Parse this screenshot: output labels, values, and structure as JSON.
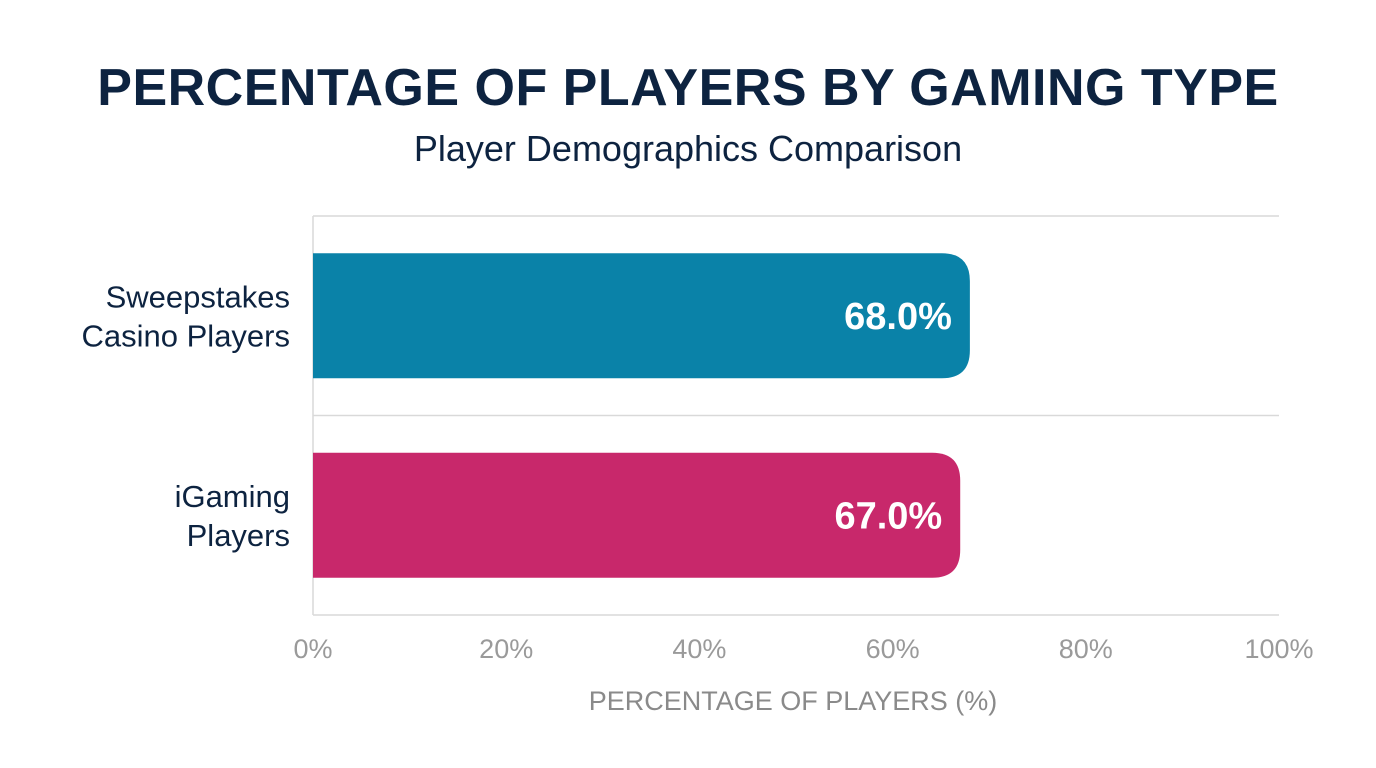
{
  "chart_data": {
    "type": "bar",
    "orientation": "horizontal",
    "title": "PERCENTAGE OF PLAYERS BY GAMING TYPE",
    "subtitle": "Player Demographics Comparison",
    "xlabel": "PERCENTAGE OF PLAYERS (%)",
    "ylabel": "",
    "xlim": [
      0,
      100
    ],
    "xticks": [
      0,
      20,
      40,
      60,
      80,
      100
    ],
    "xtick_labels": [
      "0%",
      "20%",
      "40%",
      "60%",
      "80%",
      "100%"
    ],
    "grid": "horizontal separators",
    "categories": [
      [
        "Sweepstakes",
        "Casino Players"
      ],
      [
        "iGaming",
        "Players"
      ]
    ],
    "values": [
      68.0,
      67.0
    ],
    "value_labels": [
      "68.0%",
      "67.0%"
    ],
    "colors": [
      "#0a82a8",
      "#c8286b"
    ]
  }
}
